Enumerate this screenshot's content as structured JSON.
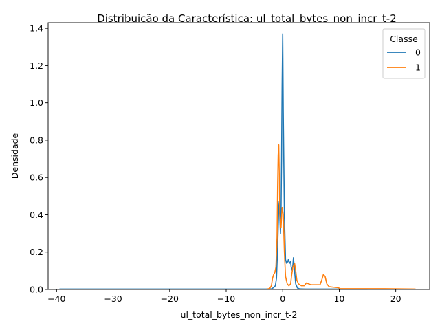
{
  "chart_data": {
    "type": "line",
    "title": "Distribuição da Característica: ul_total_bytes_non_incr_t-2",
    "xlabel": "ul_total_bytes_non_incr_t-2",
    "ylabel": "Densidade",
    "xlim": [
      -41.5,
      26.0
    ],
    "ylim": [
      0,
      1.43
    ],
    "xticks": [
      -40,
      -30,
      -20,
      -10,
      0,
      10,
      20
    ],
    "xtick_labels": [
      "−40",
      "−30",
      "−20",
      "−10",
      "0",
      "10",
      "20"
    ],
    "yticks": [
      0.0,
      0.2,
      0.4,
      0.6,
      0.8,
      1.0,
      1.2,
      1.4
    ],
    "ytick_labels": [
      "0.0",
      "0.2",
      "0.4",
      "0.6",
      "0.8",
      "1.0",
      "1.2",
      "1.4"
    ],
    "grid": false,
    "legend": {
      "title": "Classe",
      "placement": "top-right"
    },
    "series": [
      {
        "name": "0",
        "color": "#1f77b4",
        "points": [
          [
            -39.5,
            0.002
          ],
          [
            -30,
            0.002
          ],
          [
            -20,
            0.002
          ],
          [
            -10,
            0.002
          ],
          [
            -3,
            0.002
          ],
          [
            -2.0,
            0.003
          ],
          [
            -1.6,
            0.01
          ],
          [
            -1.3,
            0.02
          ],
          [
            -1.1,
            0.06
          ],
          [
            -0.9,
            0.22
          ],
          [
            -0.7,
            0.44
          ],
          [
            -0.6,
            0.47
          ],
          [
            -0.5,
            0.38
          ],
          [
            -0.4,
            0.3
          ],
          [
            -0.3,
            0.4
          ],
          [
            -0.2,
            0.7
          ],
          [
            -0.1,
            1.1
          ],
          [
            0.0,
            1.37
          ],
          [
            0.1,
            0.95
          ],
          [
            0.3,
            0.4
          ],
          [
            0.5,
            0.16
          ],
          [
            0.7,
            0.14
          ],
          [
            0.9,
            0.15
          ],
          [
            1.0,
            0.16
          ],
          [
            1.2,
            0.14
          ],
          [
            1.4,
            0.15
          ],
          [
            1.5,
            0.12
          ],
          [
            1.7,
            0.1
          ],
          [
            1.8,
            0.13
          ],
          [
            1.9,
            0.17
          ],
          [
            2.1,
            0.1
          ],
          [
            2.3,
            0.03
          ],
          [
            2.6,
            0.008
          ],
          [
            3.0,
            0.003
          ],
          [
            4.0,
            0.002
          ],
          [
            10.0,
            0.002
          ],
          [
            15.0,
            0.002
          ]
        ]
      },
      {
        "name": "1",
        "color": "#ff7f0e",
        "points": [
          [
            -2.8,
            0.002
          ],
          [
            -2.3,
            0.005
          ],
          [
            -2.0,
            0.02
          ],
          [
            -1.8,
            0.06
          ],
          [
            -1.6,
            0.08
          ],
          [
            -1.4,
            0.09
          ],
          [
            -1.2,
            0.12
          ],
          [
            -1.0,
            0.28
          ],
          [
            -0.9,
            0.55
          ],
          [
            -0.8,
            0.72
          ],
          [
            -0.7,
            0.775
          ],
          [
            -0.6,
            0.6
          ],
          [
            -0.5,
            0.4
          ],
          [
            -0.3,
            0.33
          ],
          [
            -0.1,
            0.44
          ],
          [
            0.1,
            0.4
          ],
          [
            0.3,
            0.2
          ],
          [
            0.5,
            0.07
          ],
          [
            0.8,
            0.03
          ],
          [
            1.1,
            0.02
          ],
          [
            1.4,
            0.03
          ],
          [
            1.6,
            0.08
          ],
          [
            1.8,
            0.12
          ],
          [
            2.1,
            0.14
          ],
          [
            2.3,
            0.1
          ],
          [
            2.5,
            0.05
          ],
          [
            2.8,
            0.03
          ],
          [
            3.3,
            0.02
          ],
          [
            3.8,
            0.02
          ],
          [
            4.2,
            0.035
          ],
          [
            4.6,
            0.03
          ],
          [
            5.0,
            0.025
          ],
          [
            6.0,
            0.025
          ],
          [
            6.6,
            0.025
          ],
          [
            6.9,
            0.05
          ],
          [
            7.2,
            0.08
          ],
          [
            7.5,
            0.07
          ],
          [
            7.8,
            0.03
          ],
          [
            8.2,
            0.015
          ],
          [
            9.0,
            0.012
          ],
          [
            9.8,
            0.01
          ],
          [
            10.2,
            0.004
          ],
          [
            12.0,
            0.004
          ],
          [
            15.0,
            0.004
          ],
          [
            18.0,
            0.004
          ],
          [
            21.0,
            0.003
          ],
          [
            23.5,
            0.002
          ]
        ]
      }
    ]
  }
}
